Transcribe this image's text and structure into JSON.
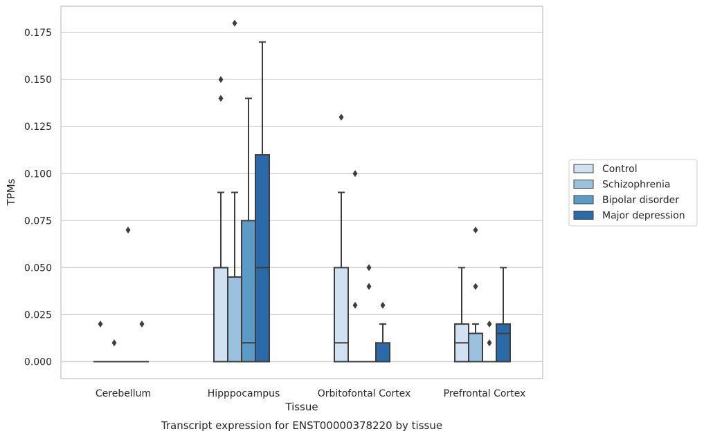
{
  "chart_data": {
    "type": "box",
    "title": "Transcript expression for ENST00000378220 by tissue",
    "xlabel": "Tissue",
    "ylabel": "TPMs",
    "ylim": [
      -0.009,
      0.189
    ],
    "yticks": [
      "0.000",
      "0.025",
      "0.050",
      "0.075",
      "0.100",
      "0.125",
      "0.150",
      "0.175"
    ],
    "grid": true,
    "legend_position": "right",
    "categories": [
      "Cerebellum",
      "Hipppocampus",
      "Orbitofontal Cortex",
      "Prefrontal Cortex"
    ],
    "series": [
      {
        "name": "Control",
        "color": "#d0e1f2",
        "boxes": [
          {
            "q1": 0,
            "median": 0,
            "q3": 0,
            "whisker_low": 0,
            "whisker_high": 0,
            "outliers": [
              0.02
            ]
          },
          {
            "q1": 0,
            "median": 0.05,
            "q3": 0.05,
            "whisker_low": 0,
            "whisker_high": 0.09,
            "outliers": [
              0.14,
              0.15
            ]
          },
          {
            "q1": 0,
            "median": 0.01,
            "q3": 0.05,
            "whisker_low": 0,
            "whisker_high": 0.09,
            "outliers": [
              0.13
            ]
          },
          {
            "q1": 0,
            "median": 0.01,
            "q3": 0.02,
            "whisker_low": 0,
            "whisker_high": 0.05,
            "outliers": []
          }
        ]
      },
      {
        "name": "Schizophrenia",
        "color": "#9ac1dd",
        "boxes": [
          {
            "q1": 0,
            "median": 0,
            "q3": 0,
            "whisker_low": 0,
            "whisker_high": 0,
            "outliers": [
              0.01
            ]
          },
          {
            "q1": 0,
            "median": 0.045,
            "q3": 0.045,
            "whisker_low": 0,
            "whisker_high": 0.09,
            "outliers": [
              0.18
            ]
          },
          {
            "q1": 0,
            "median": 0,
            "q3": 0,
            "whisker_low": 0,
            "whisker_high": 0,
            "outliers": [
              0.03,
              0.1
            ]
          },
          {
            "q1": 0,
            "median": 0.015,
            "q3": 0.015,
            "whisker_low": 0,
            "whisker_high": 0.02,
            "outliers": [
              0.04,
              0.07
            ]
          }
        ]
      },
      {
        "name": "Bipolar disorder",
        "color": "#5b9bc8",
        "boxes": [
          {
            "q1": 0,
            "median": 0,
            "q3": 0,
            "whisker_low": 0,
            "whisker_high": 0,
            "outliers": [
              0.07
            ]
          },
          {
            "q1": 0,
            "median": 0.01,
            "q3": 0.075,
            "whisker_low": 0,
            "whisker_high": 0.14,
            "outliers": []
          },
          {
            "q1": 0,
            "median": 0,
            "q3": 0,
            "whisker_low": 0,
            "whisker_high": 0,
            "outliers": [
              0.04,
              0.05
            ]
          },
          {
            "q1": 0,
            "median": 0,
            "q3": 0,
            "whisker_low": 0,
            "whisker_high": 0,
            "outliers": [
              0.01,
              0.02
            ]
          }
        ]
      },
      {
        "name": "Major depression",
        "color": "#2b6aa9",
        "boxes": [
          {
            "q1": 0,
            "median": 0,
            "q3": 0,
            "whisker_low": 0,
            "whisker_high": 0,
            "outliers": [
              0.02
            ]
          },
          {
            "q1": 0,
            "median": 0.05,
            "q3": 0.11,
            "whisker_low": 0,
            "whisker_high": 0.17,
            "outliers": []
          },
          {
            "q1": 0,
            "median": 0,
            "q3": 0.01,
            "whisker_low": 0,
            "whisker_high": 0.02,
            "outliers": [
              0.03
            ]
          },
          {
            "q1": 0,
            "median": 0.015,
            "q3": 0.02,
            "whisker_low": 0,
            "whisker_high": 0.05,
            "outliers": []
          }
        ]
      }
    ]
  }
}
